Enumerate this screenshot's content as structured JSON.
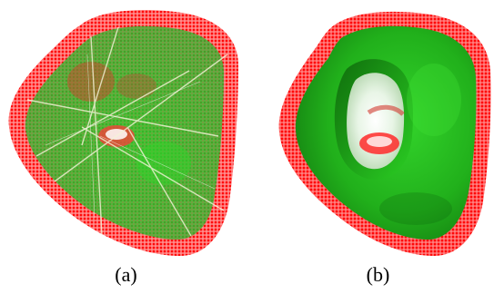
{
  "figure": {
    "panels": [
      {
        "id": "a",
        "caption": "(a)",
        "depicts": "point-sampled-shape-with-see-through-interior"
      },
      {
        "id": "b",
        "caption": "(b)",
        "depicts": "point-sampled-shape-with-hole"
      }
    ]
  },
  "colors": {
    "boundary_red": "#ff1a1a",
    "boundary_red_light": "#ff8080",
    "surface_green": "#22c51e",
    "surface_green_dark": "#0f7a0c",
    "shadow_red": "#a01010",
    "highlight": "#ffffff",
    "background": "#ffffff"
  }
}
